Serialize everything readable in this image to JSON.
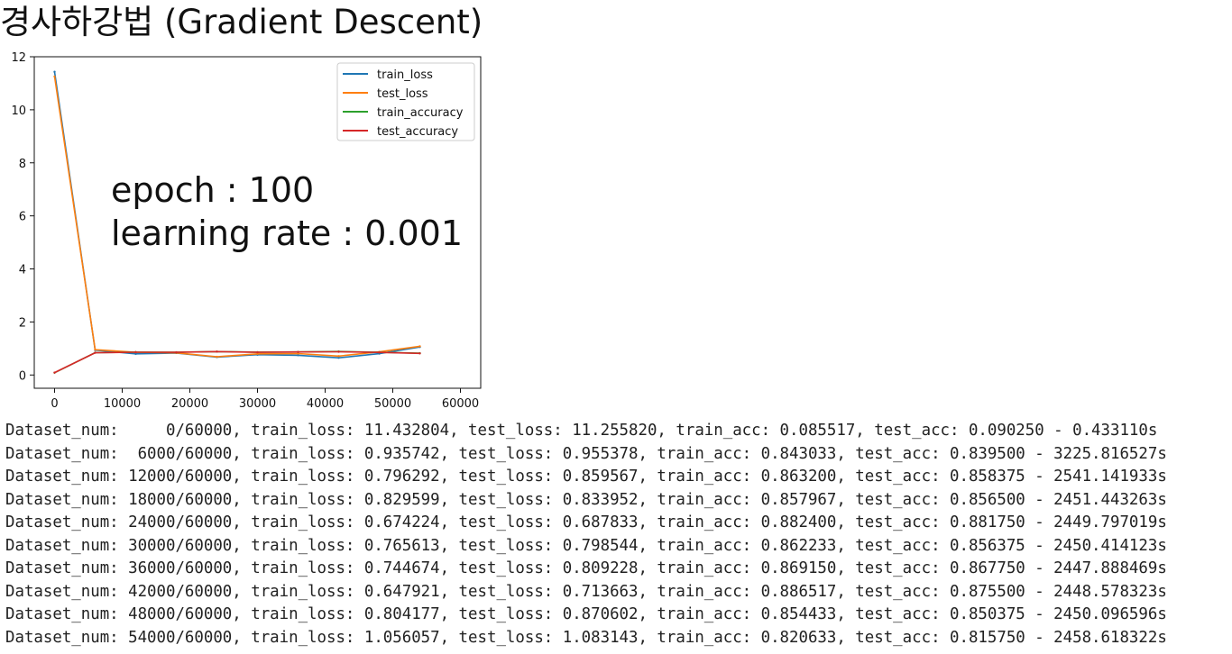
{
  "title": "경사하강법 (Gradient Descent)",
  "chart_data": {
    "type": "line",
    "x_ticks": [
      0,
      10000,
      20000,
      30000,
      40000,
      50000,
      60000
    ],
    "y_ticks": [
      0,
      2,
      4,
      6,
      8,
      10,
      12
    ],
    "xlim": [
      -3000,
      63000
    ],
    "ylim": [
      -0.5,
      12.0
    ],
    "grid": false,
    "legend_position": "top-right",
    "annotations": [
      "epoch : 100",
      "learning rate : 0.001"
    ],
    "series": [
      {
        "name": "train_loss",
        "color": "#1f77b4",
        "x": [
          0,
          6000,
          12000,
          18000,
          24000,
          30000,
          36000,
          42000,
          48000,
          54000
        ],
        "y": [
          11.432804,
          0.935742,
          0.796292,
          0.829599,
          0.674224,
          0.765613,
          0.744674,
          0.647921,
          0.804177,
          1.056057
        ]
      },
      {
        "name": "test_loss",
        "color": "#ff7f0e",
        "x": [
          0,
          6000,
          12000,
          18000,
          24000,
          30000,
          36000,
          42000,
          48000,
          54000
        ],
        "y": [
          11.25582,
          0.955378,
          0.859567,
          0.833952,
          0.687833,
          0.798544,
          0.809228,
          0.713663,
          0.870602,
          1.083143
        ]
      },
      {
        "name": "train_accuracy",
        "color": "#2ca02c",
        "x": [
          0,
          6000,
          12000,
          18000,
          24000,
          30000,
          36000,
          42000,
          48000,
          54000
        ],
        "y": [
          0.085517,
          0.843033,
          0.8632,
          0.857967,
          0.8824,
          0.862233,
          0.86915,
          0.886517,
          0.854433,
          0.820633
        ]
      },
      {
        "name": "test_accuracy",
        "color": "#d62728",
        "x": [
          0,
          6000,
          12000,
          18000,
          24000,
          30000,
          36000,
          42000,
          48000,
          54000
        ],
        "y": [
          0.09025,
          0.8395,
          0.858375,
          0.8565,
          0.88175,
          0.856375,
          0.86775,
          0.8755,
          0.850375,
          0.81575
        ]
      }
    ]
  },
  "log_lines": [
    "Dataset_num:     0/60000, train_loss: 11.432804, test_loss: 11.255820, train_acc: 0.085517, test_acc: 0.090250 - 0.433110s",
    "Dataset_num:  6000/60000, train_loss: 0.935742, test_loss: 0.955378, train_acc: 0.843033, test_acc: 0.839500 - 3225.816527s",
    "Dataset_num: 12000/60000, train_loss: 0.796292, test_loss: 0.859567, train_acc: 0.863200, test_acc: 0.858375 - 2541.141933s",
    "Dataset_num: 18000/60000, train_loss: 0.829599, test_loss: 0.833952, train_acc: 0.857967, test_acc: 0.856500 - 2451.443263s",
    "Dataset_num: 24000/60000, train_loss: 0.674224, test_loss: 0.687833, train_acc: 0.882400, test_acc: 0.881750 - 2449.797019s",
    "Dataset_num: 30000/60000, train_loss: 0.765613, test_loss: 0.798544, train_acc: 0.862233, test_acc: 0.856375 - 2450.414123s",
    "Dataset_num: 36000/60000, train_loss: 0.744674, test_loss: 0.809228, train_acc: 0.869150, test_acc: 0.867750 - 2447.888469s",
    "Dataset_num: 42000/60000, train_loss: 0.647921, test_loss: 0.713663, train_acc: 0.886517, test_acc: 0.875500 - 2448.578323s",
    "Dataset_num: 48000/60000, train_loss: 0.804177, test_loss: 0.870602, train_acc: 0.854433, test_acc: 0.850375 - 2450.096596s",
    "Dataset_num: 54000/60000, train_loss: 1.056057, test_loss: 1.083143, train_acc: 0.820633, test_acc: 0.815750 - 2458.618322s"
  ]
}
